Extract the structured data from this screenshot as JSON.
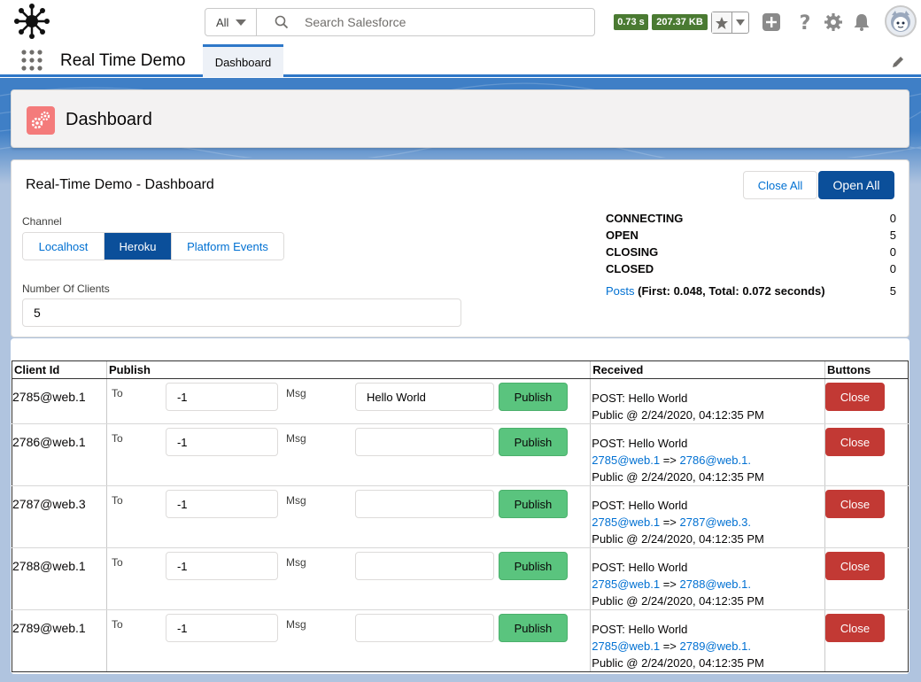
{
  "header": {
    "search": {
      "scope": "All",
      "placeholder": "Search Salesforce"
    },
    "perf": {
      "time": "0.73 s",
      "size": "207.37 KB"
    },
    "icons": [
      "star-icon",
      "chevron-down-icon",
      "plus-icon",
      "help-icon",
      "gear-icon",
      "bell-icon",
      "avatar"
    ]
  },
  "nav": {
    "app_name": "Real Time Demo",
    "tab": "Dashboard"
  },
  "page_header": {
    "title": "Dashboard"
  },
  "card": {
    "title": "Real-Time Demo - Dashboard",
    "close_all": "Close All",
    "open_all": "Open All",
    "channel_label": "Channel",
    "channels": [
      "Localhost",
      "Heroku",
      "Platform Events"
    ],
    "selected_channel": "Heroku",
    "clients_label": "Number Of Clients",
    "clients_value": "5",
    "stats": [
      {
        "label": "CONNECTING",
        "value": "0"
      },
      {
        "label": "OPEN",
        "value": "5"
      },
      {
        "label": "CLOSING",
        "value": "0"
      },
      {
        "label": "CLOSED",
        "value": "0"
      }
    ],
    "posts": {
      "link": "Posts",
      "detail": " (First: 0.048, Total: 0.072 seconds)",
      "value": "5"
    }
  },
  "table": {
    "headers": {
      "client": "Client Id",
      "publish": "Publish",
      "received": "Received",
      "buttons": "Buttons"
    },
    "to_label": "To",
    "msg_label": "Msg",
    "publish_label": "Publish",
    "close_label": "Close",
    "rows": [
      {
        "client": "2785@web.1",
        "to": "-1",
        "msg": "Hello World",
        "post": "POST: Hello World",
        "from": "",
        "arrow": "",
        "target": "",
        "end": "",
        "public": "Public @ 2/24/2020, 04:12:35 PM"
      },
      {
        "client": "2786@web.1",
        "to": "-1",
        "msg": "",
        "post": "POST: Hello World",
        "from": "2785@web.1",
        "arrow": " => ",
        "target": "2786@web.1",
        "end": ".",
        "public": "Public @ 2/24/2020, 04:12:35 PM"
      },
      {
        "client": "2787@web.3",
        "to": "-1",
        "msg": "",
        "post": "POST: Hello World",
        "from": "2785@web.1",
        "arrow": " => ",
        "target": "2787@web.3",
        "end": ".",
        "public": "Public @ 2/24/2020, 04:12:35 PM"
      },
      {
        "client": "2788@web.1",
        "to": "-1",
        "msg": "",
        "post": "POST: Hello World",
        "from": "2785@web.1",
        "arrow": " => ",
        "target": "2788@web.1",
        "end": ".",
        "public": "Public @ 2/24/2020, 04:12:35 PM"
      },
      {
        "client": "2789@web.1",
        "to": "-1",
        "msg": "",
        "post": "POST: Hello World",
        "from": "2785@web.1",
        "arrow": " => ",
        "target": "2789@web.1",
        "end": ".",
        "public": "Public @ 2/24/2020, 04:12:35 PM"
      }
    ]
  },
  "colors": {
    "brand": "#0b4f9a",
    "link": "#0070d2",
    "publish": "#5ac47e",
    "close": "#c23934",
    "perf": "#4a7a32"
  }
}
